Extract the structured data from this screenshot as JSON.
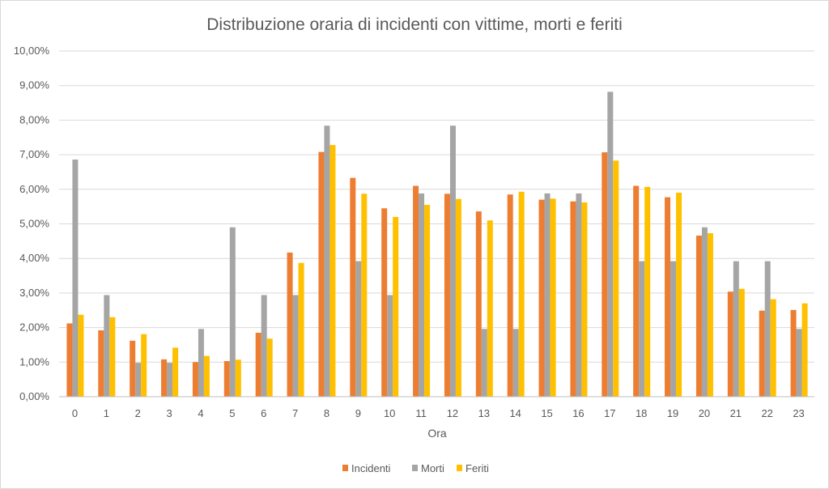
{
  "chart_data": {
    "type": "bar",
    "title": "Distribuzione oraria di incidenti con vittime, morti e feriti",
    "xlabel": "Ora",
    "ylabel": "",
    "ylim": [
      0,
      10
    ],
    "yticks": [
      "0,00%",
      "1,00%",
      "2,00%",
      "3,00%",
      "4,00%",
      "5,00%",
      "6,00%",
      "7,00%",
      "8,00%",
      "9,00%",
      "10,00%"
    ],
    "grid": true,
    "legend_position": "bottom",
    "categories": [
      "0",
      "1",
      "2",
      "3",
      "4",
      "5",
      "6",
      "7",
      "8",
      "9",
      "10",
      "11",
      "12",
      "13",
      "14",
      "15",
      "16",
      "17",
      "18",
      "19",
      "20",
      "21",
      "22",
      "23"
    ],
    "series": [
      {
        "name": "Incidenti",
        "color": "#ed7d31",
        "values": [
          2.12,
          1.92,
          1.62,
          1.08,
          1.0,
          1.03,
          1.85,
          4.17,
          7.08,
          6.33,
          5.45,
          6.1,
          5.87,
          5.36,
          5.85,
          5.7,
          5.65,
          7.07,
          6.1,
          5.77,
          4.66,
          3.04,
          2.49,
          2.51
        ]
      },
      {
        "name": "Morti",
        "color": "#a5a5a5",
        "values": [
          6.86,
          2.94,
          0.98,
          0.98,
          1.96,
          4.9,
          2.94,
          2.94,
          7.84,
          3.92,
          2.94,
          5.88,
          7.84,
          1.96,
          1.96,
          5.88,
          5.88,
          8.82,
          3.92,
          3.92,
          4.9,
          3.92,
          3.92,
          1.96
        ]
      },
      {
        "name": "Feriti",
        "color": "#ffc000",
        "values": [
          2.37,
          2.3,
          1.81,
          1.42,
          1.18,
          1.07,
          1.68,
          3.87,
          7.28,
          5.87,
          5.2,
          5.55,
          5.72,
          5.1,
          5.93,
          5.73,
          5.62,
          6.83,
          6.07,
          5.9,
          4.73,
          3.12,
          2.82,
          2.7
        ]
      }
    ]
  }
}
